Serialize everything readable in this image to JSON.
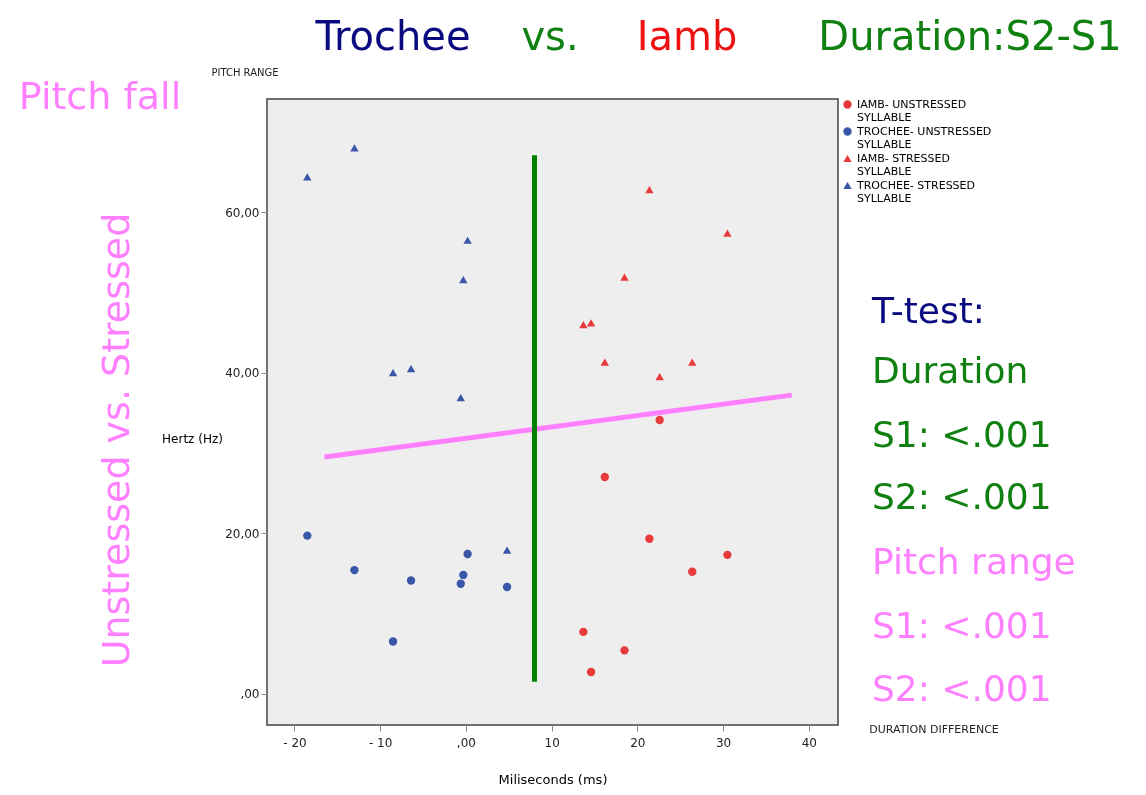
{
  "chart_data": {
    "type": "scatter",
    "xlabel": "Miliseconds (ms)",
    "ylabel": "Hertz (Hz)",
    "xlim": [
      -23.2,
      43.4
    ],
    "ylim": [
      -3.9,
      74.1
    ],
    "xticks": [
      {
        "value": -20,
        "label": "- 20"
      },
      {
        "value": -10,
        "label": "- 10"
      },
      {
        "value": 0,
        "label": ",00"
      },
      10,
      20,
      30,
      40
    ],
    "yticks": [
      {
        "value": 0,
        "label": ",00"
      },
      {
        "value": 20,
        "label": "20,00"
      },
      {
        "value": 40,
        "label": "40,00"
      },
      {
        "value": 60,
        "label": "60,00"
      }
    ],
    "grid": false,
    "legend": "top right",
    "series": [
      {
        "name": "IAMB- UNSTRESSED SYLLABLE",
        "color": "#e8393d",
        "marker": "circle",
        "x": [
          22.6,
          16.2,
          21.4,
          30.5,
          26.4,
          13.7,
          18.5,
          14.6
        ],
        "values": [
          34.1,
          27.0,
          19.3,
          17.3,
          15.2,
          7.7,
          5.4,
          2.7
        ]
      },
      {
        "name": "TROCHEE- UNSTRESSED SYLLABLE",
        "color": "#3a56a8",
        "marker": "circle",
        "x": [
          -18.5,
          -13.0,
          -6.4,
          -0.6,
          -0.3,
          0.2,
          4.8,
          -8.5
        ],
        "values": [
          19.7,
          15.4,
          14.1,
          13.7,
          14.8,
          17.4,
          13.3,
          6.5
        ]
      },
      {
        "name": "IAMB- STRESSED SYLLABLE",
        "color": "#e8393d",
        "marker": "triangle",
        "x": [
          21.4,
          30.5,
          18.5,
          13.7,
          14.6,
          16.2,
          22.6,
          26.4
        ],
        "values": [
          62.8,
          57.4,
          51.9,
          46.0,
          46.2,
          41.3,
          39.5,
          41.3
        ]
      },
      {
        "name": "TROCHEE- STRESSED SYLLABLE",
        "color": "#3a56a8",
        "marker": "triangle",
        "x": [
          -18.5,
          -13.0,
          0.2,
          -0.3,
          -8.5,
          -6.4,
          -0.6,
          4.8
        ],
        "values": [
          64.4,
          68.0,
          56.5,
          51.6,
          40.0,
          40.5,
          36.9,
          17.9
        ]
      },
      {
        "type": "line",
        "color": "#ff80ff",
        "x": [
          -16.5,
          38.0
        ],
        "values": [
          29.5,
          37.2
        ]
      },
      {
        "type": "line",
        "color": "#008000",
        "x": [
          8.0,
          8.0
        ],
        "values": [
          1.5,
          67.1
        ]
      }
    ],
    "annotations": [
      "Trochee",
      "vs.",
      "Iamb",
      "Duration:S2-S1",
      "PITCH RANGE",
      "Pitch fall",
      "Unstressed  vs.  Stressed",
      "DURATION DIFFERENCE",
      "T-test:",
      "Duration",
      "S1: <.001",
      "S2: <.001",
      "Pitch range",
      "S1: <.001",
      "S2: <.001"
    ]
  }
}
